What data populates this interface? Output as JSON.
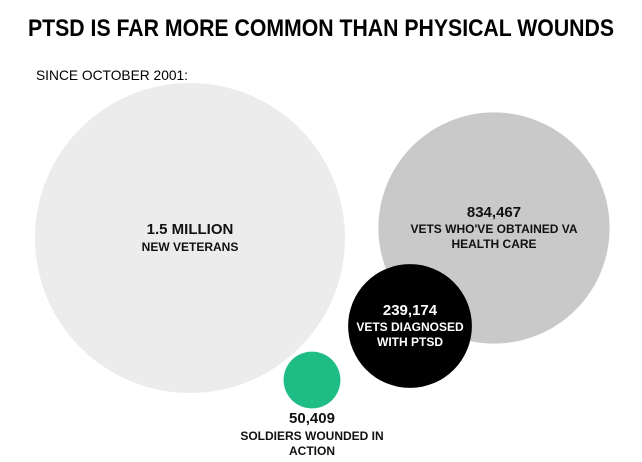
{
  "chart_data": {
    "type": "bubble",
    "title": "PTSD IS FAR MORE COMMON THAN PHYSICAL WOUNDS",
    "subtitle": "SINCE OCTOBER 2001:",
    "categories": [
      "NEW VETERANS",
      "VETS WHO'VE OBTAINED VA HEALTH CARE",
      "VETS DIAGNOSED WITH PTSD",
      "SOLDIERS WOUNDED IN ACTION"
    ],
    "values": [
      1500000,
      834467,
      239174,
      50409
    ],
    "value_labels": [
      "1.5 MILLION",
      "834,467",
      "239,174",
      "50,409"
    ],
    "colors": [
      "#ececec",
      "#c9c9c9",
      "#000000",
      "#1dbd85"
    ]
  }
}
